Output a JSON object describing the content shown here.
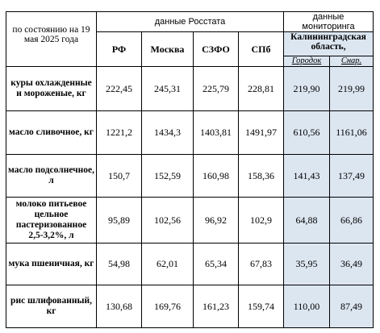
{
  "header": {
    "date_label": "по состоянию на 19 мая 2025 года",
    "rosstat_group": "данные Росстата",
    "monitoring_group": "данные мониторинга",
    "columns": [
      "РФ",
      "Москва",
      "СЗФО",
      "СПб"
    ],
    "region": "Калининградская область,",
    "cities": [
      "Городок",
      "Снар."
    ]
  },
  "rows": [
    {
      "product": "куры охлажденные и мороженые, кг",
      "values": [
        "222,45",
        "245,31",
        "225,79",
        "228,81",
        "219,90",
        "219,99"
      ]
    },
    {
      "product": "масло сливочное, кг",
      "values": [
        "1221,2",
        "1434,3",
        "1403,81",
        "1491,97",
        "610,56",
        "1161,06"
      ]
    },
    {
      "product": "масло подсолнечное, л",
      "values": [
        "150,7",
        "152,59",
        "160,98",
        "158,36",
        "141,43",
        "137,49"
      ]
    },
    {
      "product": "молоко питьевое цельное пастеризованное 2,5-3,2%, л",
      "values": [
        "95,89",
        "102,56",
        "96,92",
        "102,9",
        "64,88",
        "66,86"
      ]
    },
    {
      "product": "мука пшеничная, кг",
      "values": [
        "54,98",
        "62,01",
        "65,34",
        "67,83",
        "35,95",
        "36,49"
      ]
    },
    {
      "product": "рис шлифованный, кг",
      "values": [
        "130,68",
        "169,76",
        "161,23",
        "159,74",
        "110,00",
        "87,49"
      ]
    }
  ],
  "colors": {
    "monitoring_bg": "#dce6f1",
    "border": "#000000"
  }
}
